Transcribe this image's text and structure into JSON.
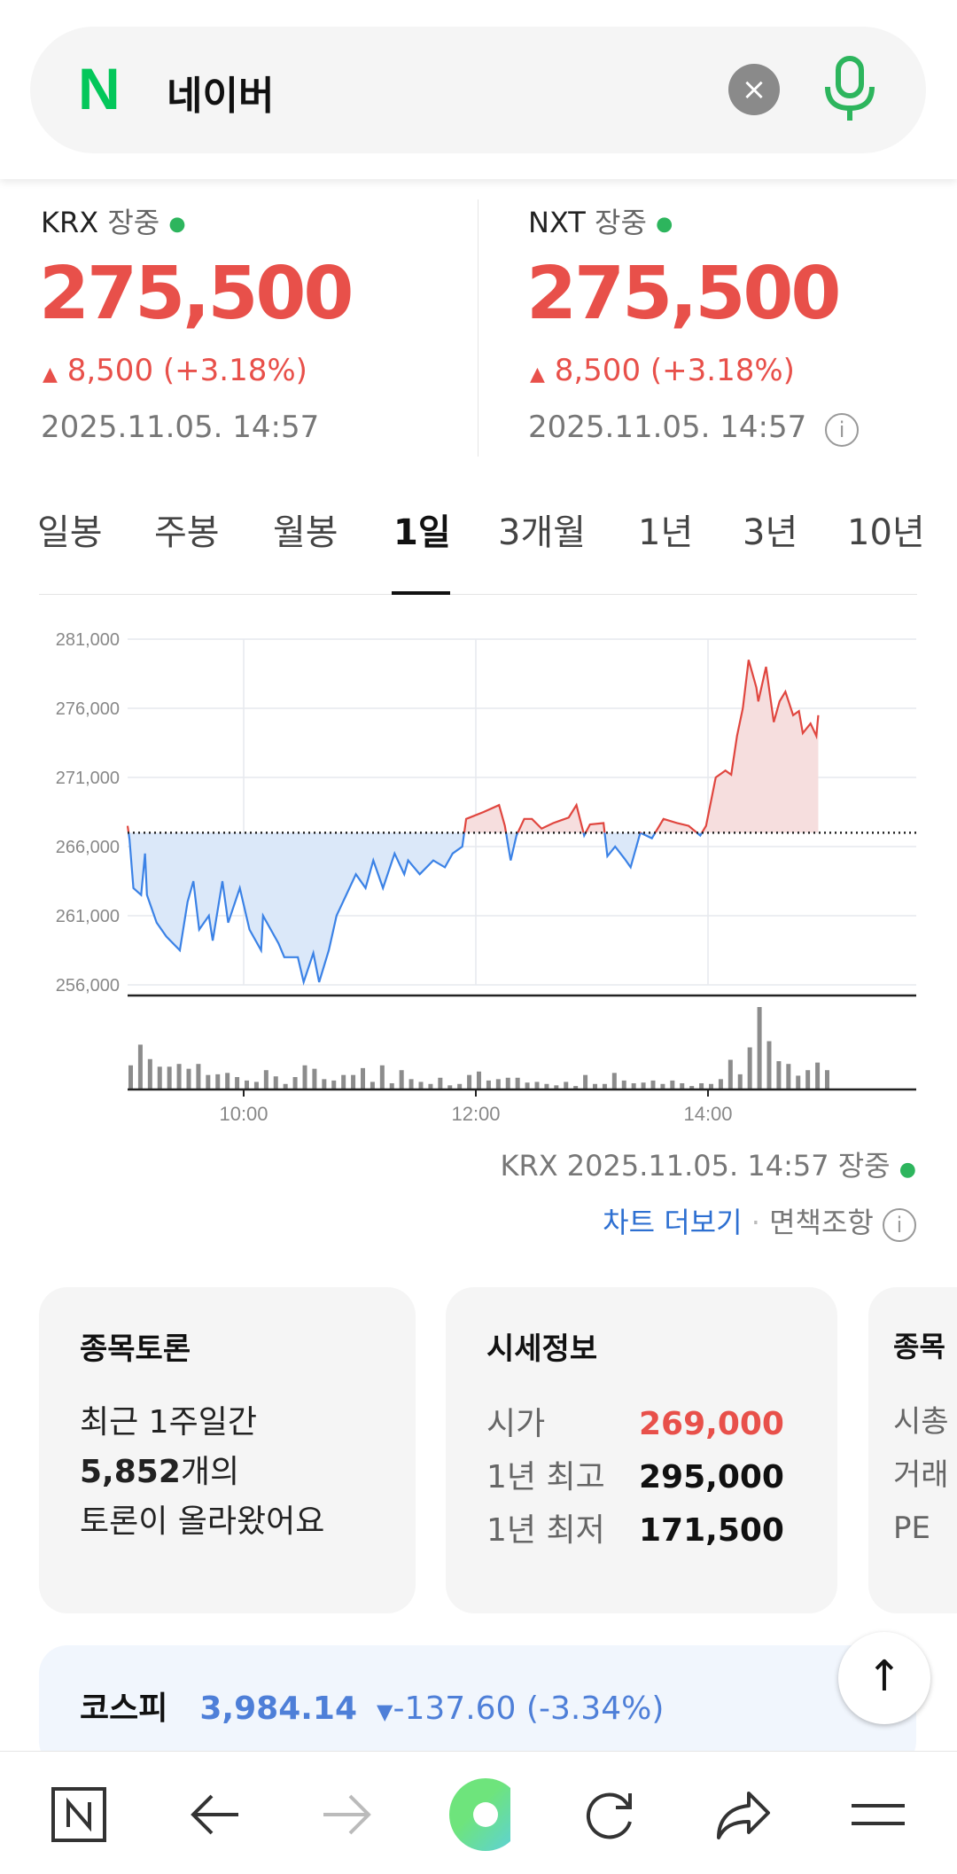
{
  "search": {
    "logo": "N",
    "query": "네이버",
    "clear_icon": "×"
  },
  "quotes": [
    {
      "market": "KRX",
      "status": "장중",
      "price": "275,500",
      "change": "8,500",
      "change_pct": "(+3.18%)",
      "datetime": "2025.11.05. 14:57"
    },
    {
      "market": "NXT",
      "status": "장중",
      "price": "275,500",
      "change": "8,500",
      "change_pct": "(+3.18%)",
      "datetime": "2025.11.05. 14:57"
    }
  ],
  "tabs": [
    "일봉",
    "주봉",
    "월봉",
    "1일",
    "3개월",
    "1년",
    "3년",
    "10년"
  ],
  "active_tab": "1일",
  "chart_data": {
    "type": "line",
    "title": "",
    "x_unit": "minutes since 09:00",
    "xticks": [
      "10:00",
      "12:00",
      "14:00"
    ],
    "yticks": [
      "281,000",
      "276,000",
      "271,000",
      "266,000",
      "261,000",
      "256,000"
    ],
    "ylim": [
      256000,
      281000
    ],
    "previous_close": 267000,
    "up_color": "#e0463f",
    "down_color": "#3b82e6",
    "price": [
      [
        0,
        267500
      ],
      [
        1,
        266500
      ],
      [
        3,
        263000
      ],
      [
        7,
        262500
      ],
      [
        9,
        265500
      ],
      [
        10,
        262500
      ],
      [
        15,
        260500
      ],
      [
        20,
        259500
      ],
      [
        27,
        258500
      ],
      [
        31,
        262000
      ],
      [
        34,
        263500
      ],
      [
        37,
        260000
      ],
      [
        42,
        261000
      ],
      [
        44,
        259200
      ],
      [
        49,
        263500
      ],
      [
        52,
        260500
      ],
      [
        58,
        263000
      ],
      [
        63,
        260000
      ],
      [
        69,
        258500
      ],
      [
        70,
        261000
      ],
      [
        78,
        259000
      ],
      [
        81,
        258000
      ],
      [
        88,
        258000
      ],
      [
        91,
        256200
      ],
      [
        96,
        258300
      ],
      [
        99,
        256200
      ],
      [
        104,
        258500
      ],
      [
        108,
        261000
      ],
      [
        113,
        262500
      ],
      [
        118,
        264000
      ],
      [
        123,
        263000
      ],
      [
        127,
        265000
      ],
      [
        132,
        263000
      ],
      [
        138,
        265500
      ],
      [
        143,
        264000
      ],
      [
        145,
        265000
      ],
      [
        151,
        264000
      ],
      [
        158,
        265000
      ],
      [
        164,
        264500
      ],
      [
        168,
        265500
      ],
      [
        173,
        266000
      ],
      [
        175,
        268000
      ],
      [
        184,
        268500
      ],
      [
        192,
        269000
      ],
      [
        195,
        267500
      ],
      [
        198,
        265000
      ],
      [
        201,
        266800
      ],
      [
        205,
        268000
      ],
      [
        209,
        268000
      ],
      [
        214,
        267300
      ],
      [
        220,
        267700
      ],
      [
        228,
        268100
      ],
      [
        232,
        269000
      ],
      [
        236,
        266800
      ],
      [
        239,
        267600
      ],
      [
        246,
        267700
      ],
      [
        248,
        265300
      ],
      [
        252,
        266000
      ],
      [
        257,
        265100
      ],
      [
        260,
        264500
      ],
      [
        265,
        267000
      ],
      [
        271,
        266600
      ],
      [
        277,
        268000
      ],
      [
        284,
        267700
      ],
      [
        290,
        267500
      ],
      [
        296,
        266800
      ],
      [
        299,
        267500
      ],
      [
        304,
        271000
      ],
      [
        309,
        271500
      ],
      [
        312,
        271200
      ],
      [
        315,
        274000
      ],
      [
        318,
        276000
      ],
      [
        321,
        279500
      ],
      [
        325,
        277500
      ],
      [
        326,
        276500
      ],
      [
        330,
        279000
      ],
      [
        334,
        275000
      ],
      [
        337,
        276500
      ],
      [
        340,
        277200
      ],
      [
        344,
        275500
      ],
      [
        347,
        275800
      ],
      [
        349,
        274200
      ],
      [
        353,
        274900
      ],
      [
        356,
        274000
      ],
      [
        357,
        275500
      ]
    ],
    "volume": [
      70,
      130,
      88,
      66,
      66,
      74,
      60,
      74,
      42,
      44,
      48,
      36,
      26,
      22,
      56,
      38,
      16,
      36,
      70,
      60,
      30,
      26,
      42,
      42,
      62,
      22,
      70,
      18,
      56,
      30,
      22,
      16,
      34,
      12,
      16,
      42,
      52,
      26,
      30,
      34,
      34,
      20,
      22,
      16,
      12,
      22,
      10,
      42,
      16,
      16,
      48,
      26,
      18,
      20,
      26,
      16,
      26,
      18,
      10,
      18,
      16,
      30,
      86,
      44,
      122,
      239,
      140,
      82,
      74,
      40,
      56,
      78,
      56
    ]
  },
  "chart_footer": {
    "market": "KRX",
    "datetime": "2025.11.05. 14:57",
    "status": "장중",
    "more": "차트 더보기",
    "sep": "·",
    "disclaimer": "면책조항"
  },
  "cards": {
    "discussion": {
      "title": "종목토론",
      "line1": "최근 1주일간",
      "count": "5,852",
      "line2_suffix": "개의",
      "line3": "토론이 올라왔어요"
    },
    "quote_info": {
      "title": "시세정보",
      "rows": [
        {
          "k": "시가",
          "v": "269,000"
        },
        {
          "k": "1년 최고",
          "v": "295,000"
        },
        {
          "k": "1년 최저",
          "v": "171,500"
        }
      ]
    },
    "third": {
      "title": "종목",
      "rows": [
        "시총",
        "거래",
        "PE"
      ]
    }
  },
  "kospi": {
    "name": "코스피",
    "value": "3,984.14",
    "change": "-137.60",
    "pct": "(-3.34%)"
  }
}
